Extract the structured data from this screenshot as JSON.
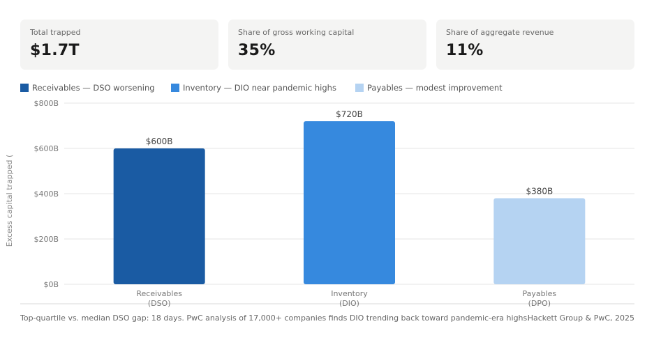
{
  "kpis": [
    {
      "label": "Total trapped",
      "value": "$1.7T"
    },
    {
      "label": "Share of gross working capital",
      "value": "35%"
    },
    {
      "label": "Share of aggregate revenue",
      "value": "11%"
    }
  ],
  "legend": [
    {
      "label": "Receivables — DSO worsening",
      "color": "#1a5ba3"
    },
    {
      "label": "Inventory — DIO near pandemic highs",
      "color": "#3689de"
    },
    {
      "label": "Payables — modest improvement",
      "color": "#b5d3f2"
    }
  ],
  "chart_data": {
    "type": "bar",
    "categories": [
      [
        "Receivables",
        "(DSO)"
      ],
      [
        "Inventory",
        "(DIO)"
      ],
      [
        "Payables",
        "(DPO)"
      ]
    ],
    "values": [
      600,
      720,
      380
    ],
    "value_labels": [
      "$600B",
      "$720B",
      "$380B"
    ],
    "colors": [
      "#1a5ba3",
      "#3689de",
      "#b5d3f2"
    ],
    "ylabel": "Excess capital trapped (",
    "ylim": [
      0,
      800
    ],
    "yticks": [
      0,
      200,
      400,
      600,
      800
    ],
    "ytick_labels": [
      "$0B",
      "$200B",
      "$400B",
      "$600B",
      "$800B"
    ],
    "grid": true
  },
  "footnote": "Top-quartile vs. median DSO gap: 18 days. PwC analysis of 17,000+ companies finds DIO trending back toward pandemic-era highs.",
  "source": "Hackett Group & PwC, 2025"
}
